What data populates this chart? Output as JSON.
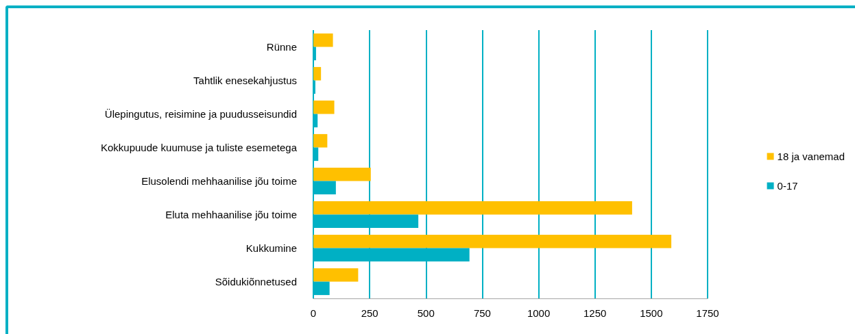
{
  "chart_data": {
    "type": "bar",
    "orientation": "horizontal",
    "categories": [
      "Rünne",
      "Tahtlik enesekahjustus",
      "Ülepingutus, reisimine ja puudusseisundid",
      "Kokkupuude kuumuse ja tuliste esemetega",
      "Elusolendi mehhaanilise jõu toime",
      "Eluta mehhaanilise jõu toime",
      "Kukkumine",
      "Sõidukiõnnetused"
    ],
    "series": [
      {
        "name": "18 ja vanemad",
        "color": "#ffc000",
        "values": [
          87,
          34,
          93,
          62,
          255,
          1415,
          1589,
          199
        ]
      },
      {
        "name": "0-17",
        "color": "#00b0c4",
        "values": [
          12,
          9,
          19,
          22,
          100,
          466,
          693,
          72
        ]
      }
    ],
    "xlim": [
      0,
      1750
    ],
    "xticks": [
      0,
      250,
      500,
      750,
      1000,
      1250,
      1500,
      1750
    ],
    "grid": "x",
    "legend": "right"
  }
}
